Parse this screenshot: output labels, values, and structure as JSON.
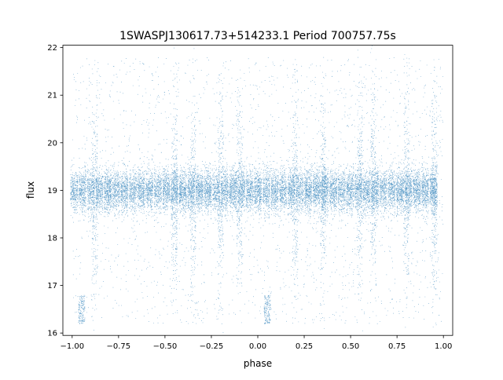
{
  "chart_data": {
    "type": "scatter",
    "title": "1SWASPJ130617.73+514233.1 Period 700757.75s",
    "xlabel": "phase",
    "ylabel": "flux",
    "xlim": [
      -1.05,
      1.05
    ],
    "ylim": [
      15.95,
      22.05
    ],
    "xticks": [
      -1.0,
      -0.75,
      -0.5,
      -0.25,
      0.0,
      0.25,
      0.5,
      0.75,
      1.0
    ],
    "xtick_labels": [
      "−1.00",
      "−0.75",
      "−0.50",
      "−0.25",
      "0.00",
      "0.25",
      "0.50",
      "0.75",
      "1.00"
    ],
    "yticks": [
      16,
      17,
      18,
      19,
      20,
      21,
      22
    ],
    "ytick_labels": [
      "16",
      "17",
      "18",
      "19",
      "20",
      "21",
      "22"
    ],
    "grid": false,
    "marker_color": "#1f77b4",
    "series": [
      {
        "description_note": "",
        "points_summary": {
          "phase_range": [
            -1.0,
            1.0
          ],
          "main_band_center": 19.0,
          "main_band_halfwidth": 0.35,
          "dip_clusters": [
            {
              "phase_center": -0.95,
              "flux_range": [
                16.2,
                16.8
              ]
            },
            {
              "phase_center": 0.05,
              "flux_range": [
                16.2,
                16.8
              ]
            }
          ],
          "scatter_flux_range": [
            16.2,
            21.8
          ]
        }
      }
    ]
  }
}
